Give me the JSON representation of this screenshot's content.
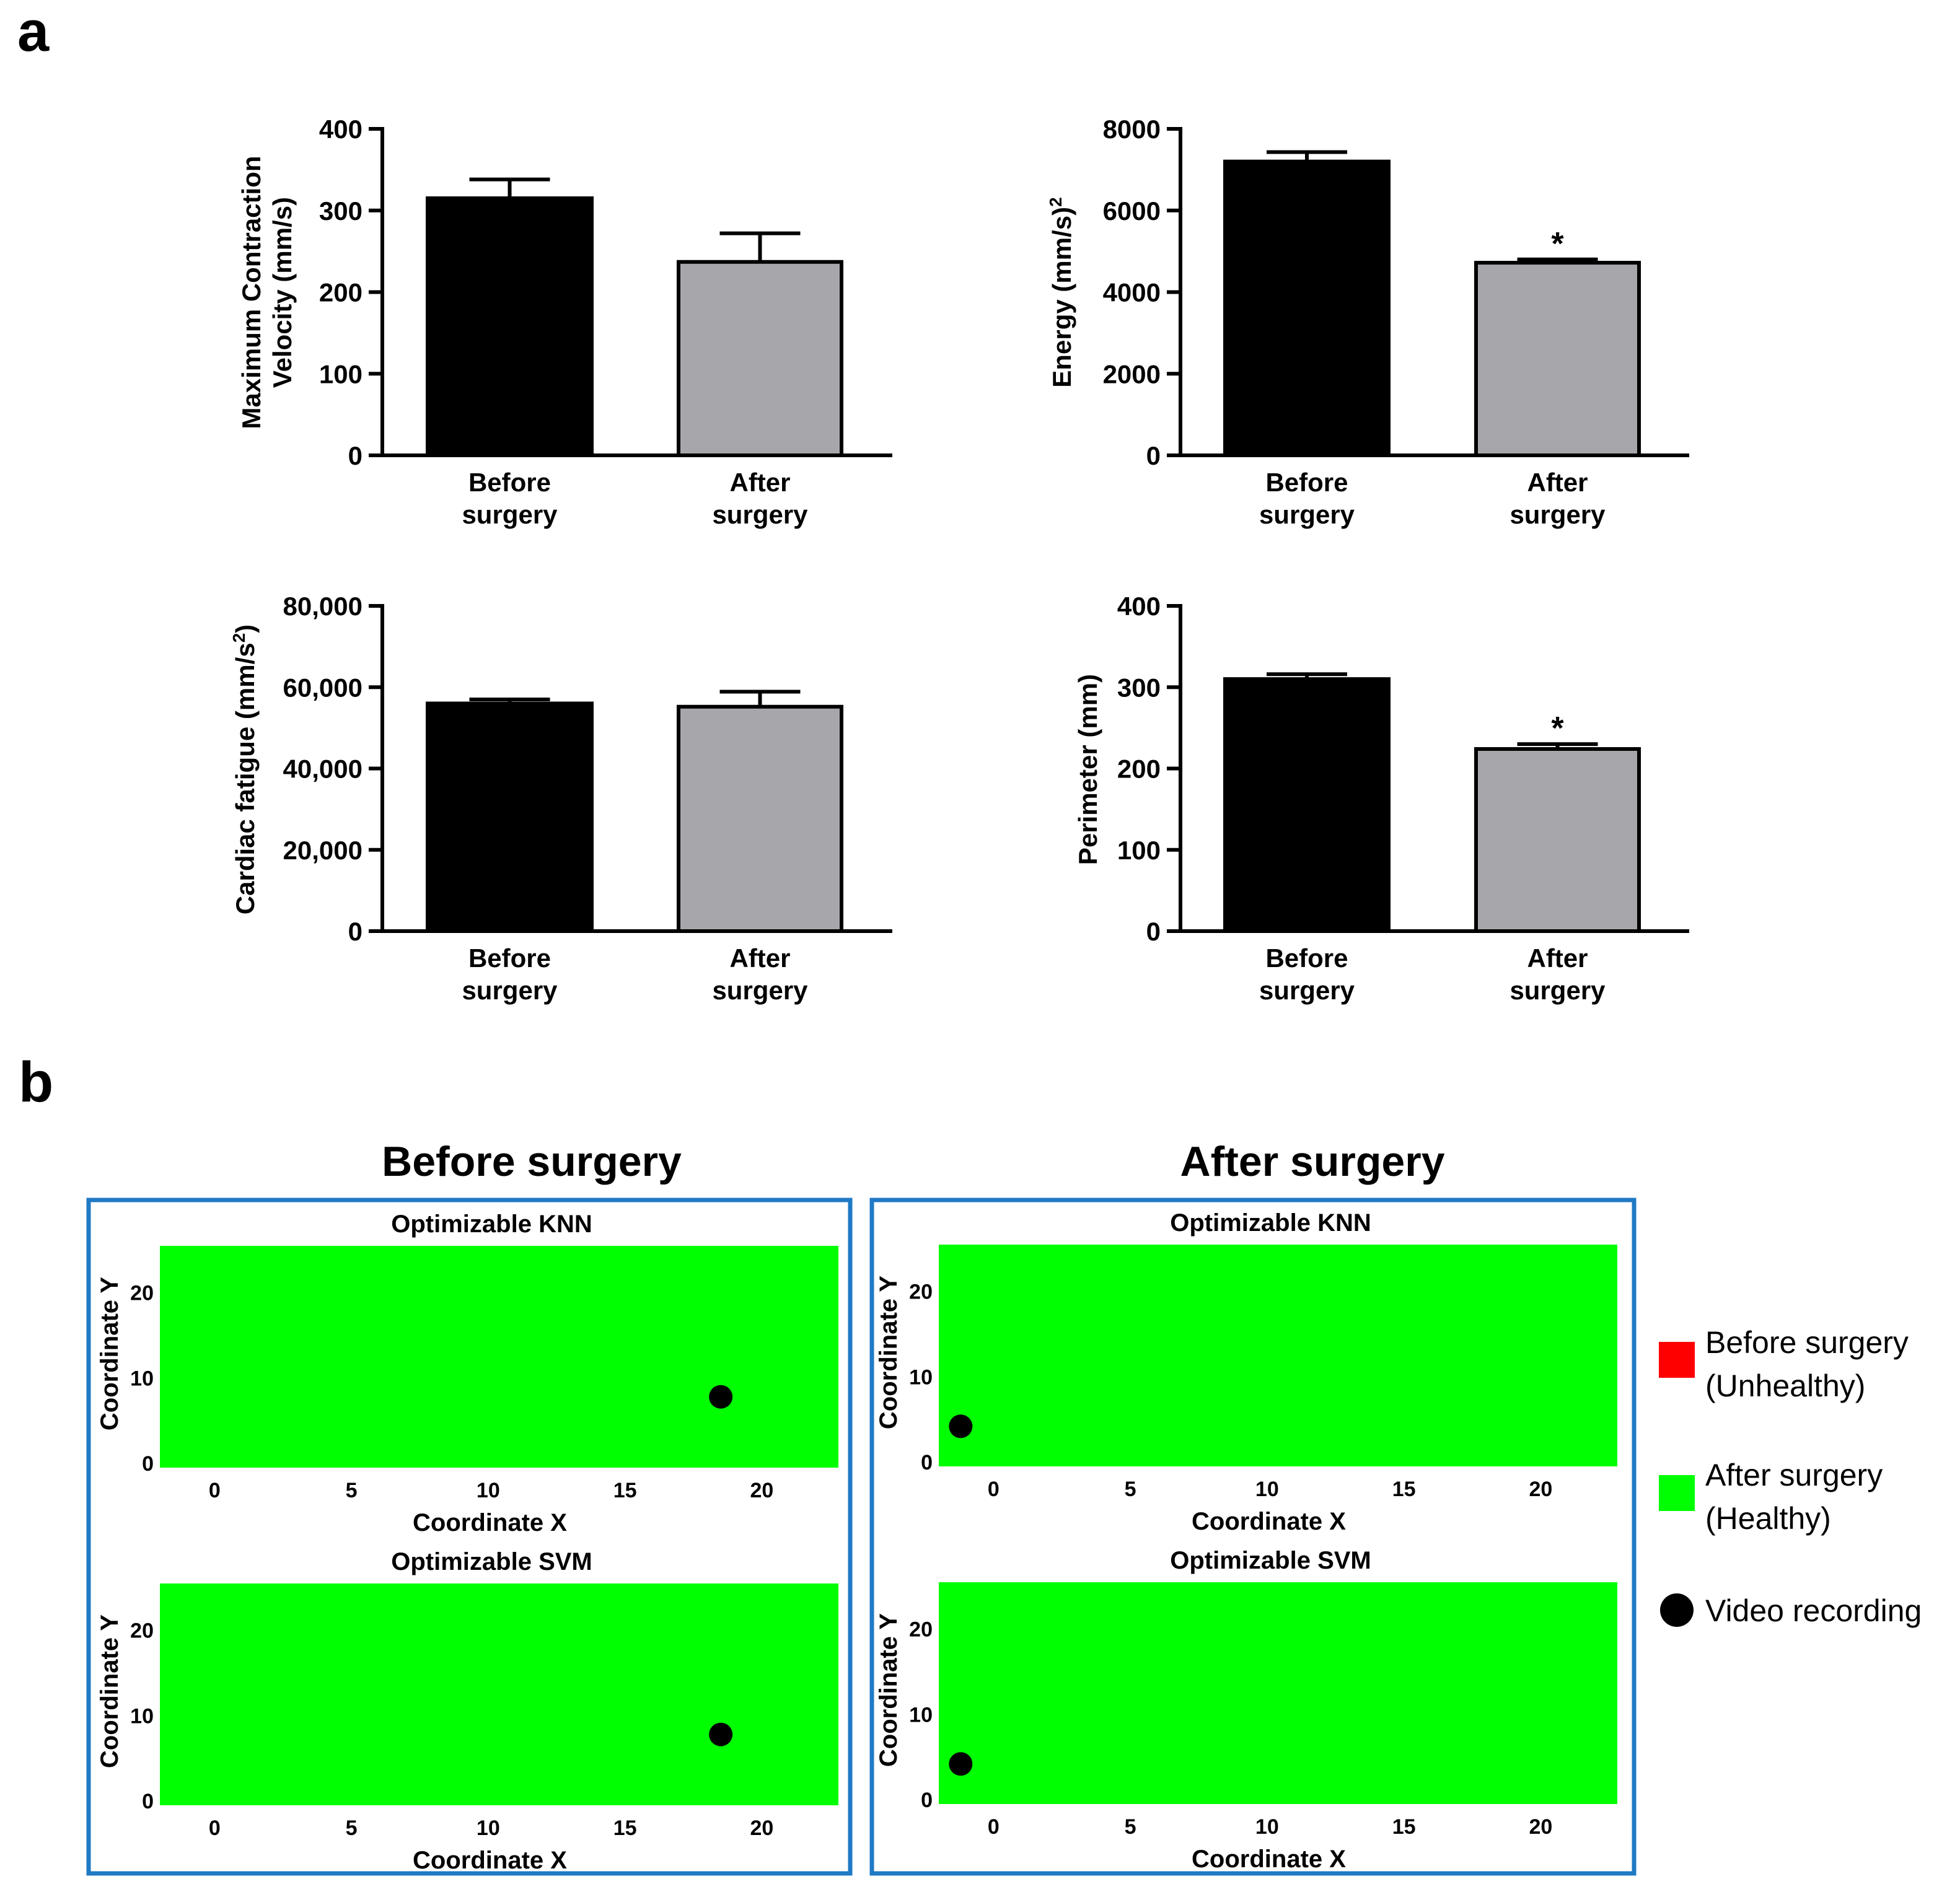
{
  "panel_a": {
    "label": "a",
    "categories": [
      "Before surgery",
      "After surgery"
    ],
    "category_lines": [
      [
        "Before",
        "surgery"
      ],
      [
        "After",
        "surgery"
      ]
    ]
  },
  "panel_b": {
    "label": "b",
    "columns": [
      "Before surgery",
      "After surgery"
    ],
    "subplots": [
      "Optimizable KNN",
      "Optimizable SVM"
    ],
    "xlabel": "Coordinate X",
    "ylabel": "Coordinate Y",
    "xticks": [
      "0",
      "5",
      "10",
      "15",
      "20"
    ],
    "yticks": [
      "0",
      "10",
      "20"
    ],
    "legend": [
      {
        "lines": [
          "Before surgery",
          "(Unhealthy)"
        ],
        "color": "#ff0000",
        "shape": "square"
      },
      {
        "lines": [
          "After surgery",
          "(Healthy)"
        ],
        "color": "#00ff00",
        "shape": "square"
      },
      {
        "lines": [
          "Video recording"
        ],
        "color": "#000000",
        "shape": "circle"
      }
    ]
  },
  "colors": {
    "before_bar": "#000000",
    "after_bar": "#a7a6aa",
    "unhealthy": "#ff0000",
    "healthy": "#00ff00",
    "frame": "#1f7ac4"
  },
  "chart_data": [
    {
      "type": "bar",
      "title": "",
      "ylabel_lines": [
        "Maximum Contraction",
        "Velocity (mm/s)"
      ],
      "categories": [
        "Before surgery",
        "After surgery"
      ],
      "values": [
        315,
        237
      ],
      "errors": [
        23,
        35
      ],
      "yticks": [
        "0",
        "100",
        "200",
        "300",
        "400"
      ],
      "ylim": [
        0,
        400
      ],
      "significance": [
        "",
        ""
      ]
    },
    {
      "type": "bar",
      "title": "",
      "ylabel_lines": [
        "Energy (mm/s)²"
      ],
      "categories": [
        "Before surgery",
        "After surgery"
      ],
      "values": [
        7200,
        4720
      ],
      "errors": [
        230,
        80
      ],
      "yticks": [
        "0",
        "2000",
        "4000",
        "6000",
        "8000"
      ],
      "ylim": [
        0,
        8000
      ],
      "significance": [
        "",
        "*"
      ]
    },
    {
      "type": "bar",
      "title": "",
      "ylabel_lines": [
        "Cardiac fatigue (mm/s²)"
      ],
      "categories": [
        "Before surgery",
        "After surgery"
      ],
      "values": [
        56000,
        55200
      ],
      "errors": [
        1000,
        3700
      ],
      "yticks": [
        "0",
        "20,000",
        "40,000",
        "60,000",
        "80,000"
      ],
      "ylim": [
        0,
        80000
      ],
      "significance": [
        "",
        ""
      ]
    },
    {
      "type": "bar",
      "title": "",
      "ylabel_lines": [
        "Perimeter (mm)"
      ],
      "categories": [
        "Before surgery",
        "After surgery"
      ],
      "values": [
        310,
        224
      ],
      "errors": [
        6,
        6
      ],
      "yticks": [
        "0",
        "100",
        "200",
        "300",
        "400"
      ],
      "ylim": [
        0,
        400
      ],
      "significance": [
        "",
        "*"
      ]
    },
    {
      "type": "scatter",
      "title": "Optimizable KNN",
      "panel": "Before surgery",
      "xlabel": "Coordinate X",
      "ylabel": "Coordinate Y",
      "xlim": [
        -2,
        22.8
      ],
      "ylim": [
        -0.5,
        25.5
      ],
      "points": [
        {
          "x": 18.5,
          "y": 7.8,
          "label": "Video recording"
        }
      ]
    },
    {
      "type": "scatter",
      "title": "Optimizable SVM",
      "panel": "Before surgery",
      "xlabel": "Coordinate X",
      "ylabel": "Coordinate Y",
      "xlim": [
        -2,
        22.8
      ],
      "ylim": [
        -0.5,
        25.5
      ],
      "points": [
        {
          "x": 18.5,
          "y": 7.8,
          "label": "Video recording"
        }
      ]
    },
    {
      "type": "scatter",
      "title": "Optimizable KNN",
      "panel": "After surgery",
      "xlabel": "Coordinate X",
      "ylabel": "Coordinate Y",
      "xlim": [
        -2,
        22.8
      ],
      "ylim": [
        -0.5,
        25.5
      ],
      "points": [
        {
          "x": -1.2,
          "y": 4.2,
          "label": "Video recording"
        }
      ]
    },
    {
      "type": "scatter",
      "title": "Optimizable SVM",
      "panel": "After surgery",
      "xlabel": "Coordinate X",
      "ylabel": "Coordinate Y",
      "xlim": [
        -2,
        22.8
      ],
      "ylim": [
        -0.5,
        25.5
      ],
      "points": [
        {
          "x": -1.2,
          "y": 4.2,
          "label": "Video recording"
        }
      ]
    }
  ]
}
